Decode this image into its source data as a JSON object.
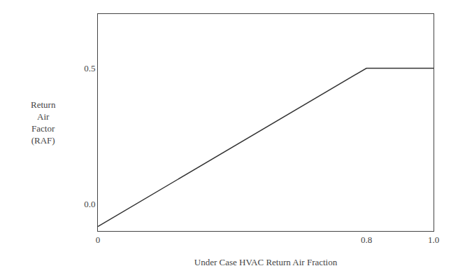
{
  "chart_data": {
    "type": "line",
    "x": [
      0.0,
      0.8,
      1.0
    ],
    "values": [
      -0.0833,
      0.5,
      0.5
    ],
    "xlabel": "Under Case HVAC Return Air Fraction",
    "ylabel": "Return\nAir\nFactor\n(RAF)",
    "xlim": [
      0.0,
      1.0
    ],
    "ylim": [
      -0.1,
      0.7
    ],
    "xticks": [
      0,
      0.8,
      {
        "value": 1.0,
        "label": "1.0"
      }
    ],
    "yticks": [
      {
        "value": 0.0,
        "label": "0.0"
      },
      0.5
    ],
    "color": "#333333",
    "grid": false
  }
}
